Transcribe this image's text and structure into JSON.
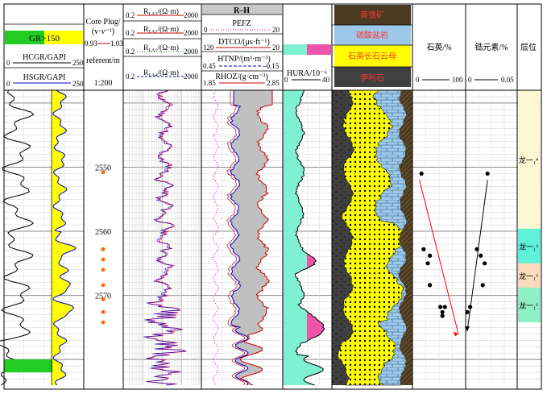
{
  "chart_data": {
    "type": "well-log",
    "depth_axis": {
      "label": "referent/m",
      "scale": "1:200",
      "range": [
        2538,
        2584
      ],
      "ticks": [
        2550,
        2560,
        2570
      ]
    },
    "tracks": [
      {
        "id": "gr",
        "header_gr": "GR>150",
        "curves": [
          {
            "name": "HCGR/GAPI",
            "range": [
              0,
              250
            ],
            "color": "#000000"
          },
          {
            "name": "HSGR/GAPI",
            "range": [
              0,
              250
            ],
            "color": "#0000cc"
          }
        ]
      },
      {
        "id": "core",
        "title": "Core Plug/",
        "unit": "(v·v⁻¹)",
        "range": [
          0.93,
          1.03
        ],
        "points_depth": [
          2550.8,
          2562.8,
          2564.4,
          2566.0,
          2568.4,
          2570.6,
          2572.6,
          2574.2
        ]
      },
      {
        "id": "res",
        "curves": [
          {
            "name": "R_LA3/(Ω·m)",
            "range": [
              0.2,
              2000
            ],
            "color": "#cc0000"
          },
          {
            "name": "R_LA2/(Ω·m)",
            "range": [
              0.2,
              2000
            ],
            "color": "#cc0000"
          },
          {
            "name": "R_LA1/(Ω·m)",
            "range": [
              0.2,
              2000
            ],
            "color": "#008800"
          },
          {
            "name": "R_LA4/(Ω·m)",
            "range": [
              0.2,
              2000
            ],
            "color": "#0000cc"
          }
        ]
      },
      {
        "id": "por",
        "title": "R–H",
        "curves": [
          {
            "name": "PEFZ",
            "range": [
              0,
              20
            ],
            "color": "#cc00cc"
          },
          {
            "name": "DTCO/(μs·ft⁻¹)",
            "range": [
              120,
              20
            ],
            "color": "#cc0000"
          },
          {
            "name": "HTNP/(m³·m⁻³)",
            "range": [
              0.45,
              -0.15
            ],
            "color": "#0000cc"
          },
          {
            "name": "RHOZ/(g·cm⁻³)",
            "range": [
              1.85,
              2.85
            ],
            "color": "#cc0000"
          }
        ]
      },
      {
        "id": "hura",
        "curves": [
          {
            "name": "HURA/10⁻⁶",
            "range": [
              0,
              40
            ],
            "color": "#000000"
          }
        ]
      },
      {
        "id": "lith",
        "legend": [
          "黄铁矿",
          "碳酸盐岩",
          "石英长石云母",
          "伊利石"
        ]
      },
      {
        "id": "quartz",
        "title": "石英/%",
        "range": [
          0,
          100
        ],
        "points": [
          [
            2551.0,
            10
          ],
          [
            2562.8,
            15
          ],
          [
            2563.8,
            30
          ],
          [
            2565.0,
            25
          ],
          [
            2568.4,
            30
          ],
          [
            2571.8,
            55
          ],
          [
            2572.6,
            60
          ],
          [
            2573.2,
            60
          ],
          [
            2571.8,
            66
          ]
        ]
      },
      {
        "id": "zircon",
        "title": "锆元素/%",
        "range": [
          0,
          0.05
        ],
        "points": [
          [
            2551.0,
            0.021
          ],
          [
            2562.8,
            0.01
          ],
          [
            2563.8,
            0.014
          ],
          [
            2565.0,
            0.018
          ],
          [
            2568.4,
            0.016
          ],
          [
            2571.8,
            0.003
          ],
          [
            2572.6,
            0.0
          ]
        ]
      },
      {
        "id": "layer",
        "title": "层位",
        "zones": [
          {
            "label": "龙一₁⁴",
            "top": 2538.0,
            "bottom": 2559.6,
            "color": "#fdf8d3"
          },
          {
            "label": "龙一₁³",
            "top": 2559.6,
            "bottom": 2565.0,
            "color": "#5ff2d8"
          },
          {
            "label": "龙一₁²",
            "top": 2565.0,
            "bottom": 2568.8,
            "color": "#f8dcbc"
          },
          {
            "label": "龙一₁¹",
            "top": 2568.8,
            "bottom": 2574.2,
            "color": "#8ff0c8"
          }
        ]
      }
    ]
  },
  "labels": {
    "gr_flag": "GR>150",
    "hcgr": "HCGR/GAPI",
    "hsgr": "HSGR/GAPI",
    "gr_min": "0",
    "gr_max": "250",
    "core_title": "Core Plug/",
    "core_unit": "(v·v⁻¹)",
    "core_min": "0.93",
    "core_max": "1.03",
    "depth_label": "referent/m",
    "scale": "1:200",
    "res_min": "0.2",
    "res_max": "2000",
    "res_unit": "/(Ω·m)",
    "res_sub": [
      "LA3",
      "LA2",
      "LA1",
      "LA4"
    ],
    "rh_title": "R–H",
    "pefz": "PEFZ",
    "pefz_min": "0",
    "pefz_max": "20",
    "dtco": "DTCO/(μs·ft⁻¹)",
    "dtco_min": "120",
    "dtco_max": "20",
    "htnp": "HTNP/(m³·m⁻³)",
    "htnp_min": "0.45",
    "htnp_max": "–0.15",
    "rhoz": "RHOZ/(g·cm⁻³)",
    "rhoz_min": "1.85",
    "rhoz_max": "2.85",
    "hura": "HURA/10⁻⁶",
    "hura_min": "0",
    "hura_max": "40",
    "lith1": "黄铁矿",
    "lith2": "碳酸盐岩",
    "lith3": "石英长石云母",
    "lith4": "伊利石",
    "quartz": "石英/%",
    "quartz_min": "0",
    "quartz_max": "100",
    "zircon": "锆元素/%",
    "zircon_min": "0",
    "zircon_max": "0.05",
    "layer": "层位",
    "depths": [
      "2550",
      "2560",
      "2570"
    ],
    "zones": [
      "龙一₁⁴",
      "龙一₁³",
      "龙一₁²",
      "龙一₁¹"
    ]
  },
  "colors": {
    "gr_fill": "#ffff00",
    "gr_high": "#22cc22",
    "core": "#ff6600",
    "res": "#dd2255",
    "gray": "#c0c0c0",
    "hura": "#7ff0d0",
    "hura_hi": "#ee55aa",
    "pyrite": "#4a3a22",
    "carbonate": "#9cc8ea",
    "quartz_lith": "#ffff00",
    "illite": "#404040"
  }
}
